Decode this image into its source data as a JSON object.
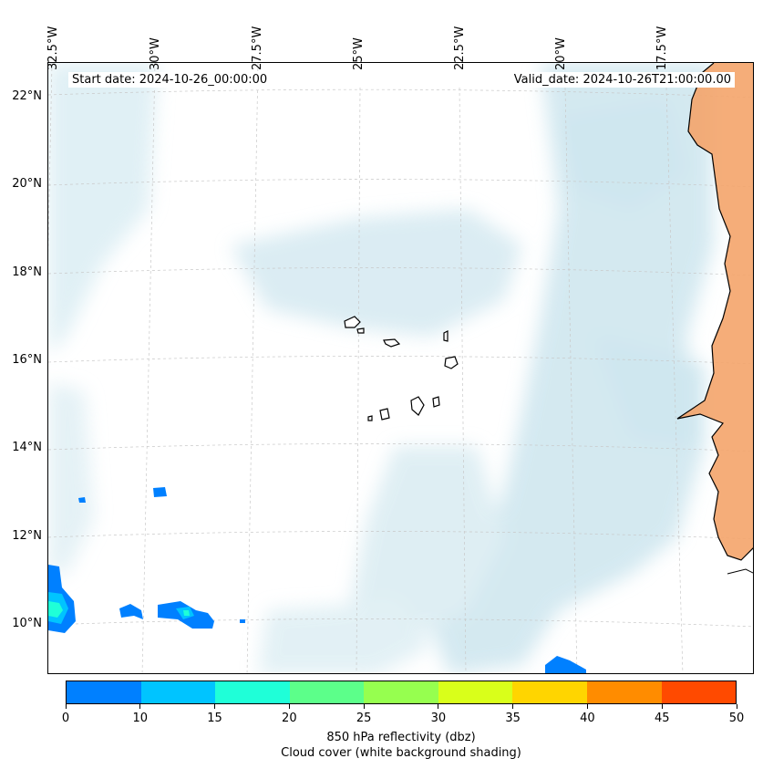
{
  "map": {
    "start_date": "Start date: 2024-10-26_00:00:00",
    "valid_date": "Valid_date: 2024-10-26T21:00:00.00",
    "lon_labels": [
      "32.5°W",
      "30°W",
      "27.5°W",
      "25°W",
      "22.5°W",
      "20°W",
      "17.5°W"
    ],
    "lat_labels": [
      "22°N",
      "20°N",
      "18°N",
      "16°N",
      "14°N",
      "12°N",
      "10°N"
    ],
    "land_color": "#f4a46a",
    "cloud_color": "#cfe7ef"
  },
  "colorbar": {
    "ticks": [
      "0",
      "10",
      "15",
      "20",
      "25",
      "30",
      "35",
      "40",
      "45",
      "50"
    ],
    "colors": [
      "#0080ff",
      "#00c4ff",
      "#1fffd8",
      "#5cff8a",
      "#96ff4f",
      "#d9ff1a",
      "#ffd500",
      "#ff8c00",
      "#ff4a00"
    ],
    "label": "850 hPa reflectivity (dbz)",
    "sublabel": "Cloud cover (white background shading)"
  }
}
